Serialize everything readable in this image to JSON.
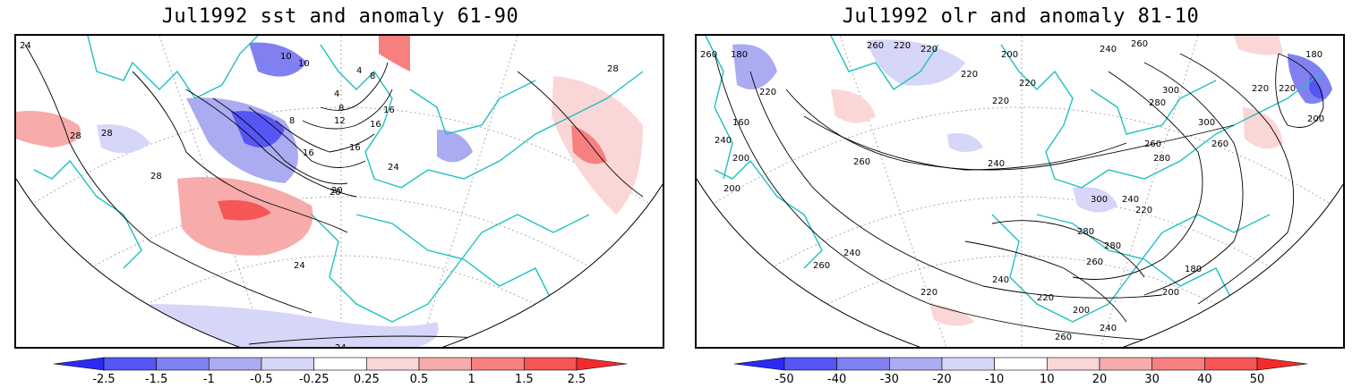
{
  "panels": [
    {
      "title": "Jul1992 sst and anomaly 61-90",
      "contour_labels": [
        "24",
        "28",
        "28",
        "28",
        "28",
        "20",
        "16",
        "12",
        "8",
        "8",
        "4",
        "4",
        "8",
        "16",
        "16",
        "20",
        "24",
        "24",
        "24",
        "10",
        "10",
        "16"
      ],
      "colorbar": {
        "ticks": [
          "-2.5",
          "-1.5",
          "-1",
          "-0.5",
          "-0.25",
          "0.25",
          "0.5",
          "1",
          "1.5",
          "2.5"
        ],
        "colors": [
          "#2b2bf5",
          "#5656f5",
          "#8080f0",
          "#ababf2",
          "#d6d6f8",
          "#ffffff",
          "#fbd6d6",
          "#f7abab",
          "#f68080",
          "#f55656",
          "#f52b2b"
        ]
      }
    },
    {
      "title": "Jul1992 olr and anomaly 81-10",
      "contour_labels": [
        "260",
        "180",
        "220",
        "160",
        "240",
        "200",
        "260",
        "220",
        "220",
        "220",
        "200",
        "220",
        "220",
        "240",
        "260",
        "300",
        "280",
        "300",
        "260",
        "180",
        "220",
        "220",
        "200",
        "260",
        "240",
        "280",
        "260",
        "300",
        "240",
        "220",
        "240",
        "200",
        "240",
        "260",
        "220",
        "240",
        "280",
        "260",
        "280",
        "220",
        "200",
        "260",
        "240",
        "200",
        "180"
      ],
      "colorbar": {
        "ticks": [
          "-50",
          "-40",
          "-30",
          "-20",
          "-10",
          "10",
          "20",
          "30",
          "40",
          "50"
        ],
        "colors": [
          "#2b2bf5",
          "#5656f5",
          "#8080f0",
          "#ababf2",
          "#d6d6f8",
          "#ffffff",
          "#fbd6d6",
          "#f7abab",
          "#f68080",
          "#f55656",
          "#f52b2b"
        ]
      }
    }
  ]
}
